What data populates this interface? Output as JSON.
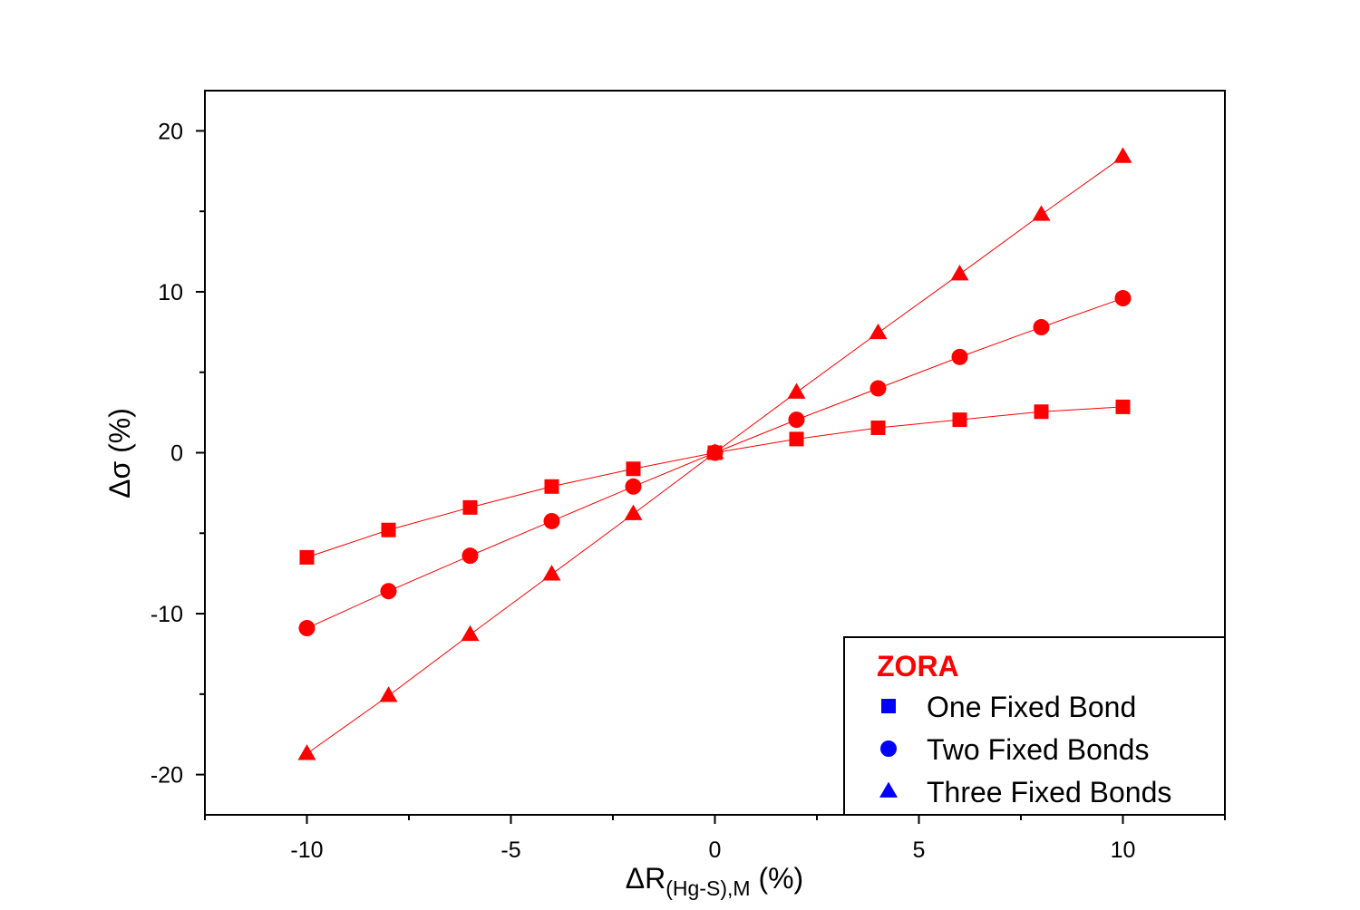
{
  "chart_data": {
    "type": "line",
    "x_axis": {
      "label_main": "ΔR",
      "label_sub": "(Hg-S),M",
      "label_unit": " (%)",
      "range": [
        -12.5,
        12.5
      ],
      "ticks": [
        -10,
        -5,
        0,
        5,
        10
      ],
      "tick_labels": [
        "-10",
        "-5",
        "0",
        "5",
        "10"
      ]
    },
    "y_axis": {
      "label": "Δσ (%)",
      "range": [
        -22.5,
        22.5
      ],
      "ticks": [
        -20,
        -10,
        0,
        10,
        20
      ],
      "tick_labels": [
        "-20",
        "-10",
        "0",
        "10",
        "20"
      ]
    },
    "legend": {
      "title": "ZORA",
      "title_color": "#ff0000",
      "marker_color": "#0000ff",
      "placement": "bottom-right",
      "entries": [
        {
          "label": "One Fixed Bond",
          "marker": "square"
        },
        {
          "label": "Two Fixed Bonds",
          "marker": "circle"
        },
        {
          "label": "Three Fixed Bonds",
          "marker": "triangle"
        }
      ]
    },
    "grid": false,
    "series_color": "#ff0000",
    "x": [
      -10,
      -8,
      -6,
      -4,
      -2,
      0,
      2,
      4,
      6,
      8,
      10
    ],
    "series": [
      {
        "name": "One Fixed Bond",
        "marker": "square",
        "values": [
          -6.5,
          -4.8,
          -3.4,
          -2.1,
          -1.0,
          0,
          0.85,
          1.55,
          2.05,
          2.55,
          2.85
        ]
      },
      {
        "name": "Two Fixed Bonds",
        "marker": "circle",
        "values": [
          -10.9,
          -8.6,
          -6.4,
          -4.25,
          -2.1,
          0,
          2.05,
          4.0,
          5.95,
          7.8,
          9.6
        ]
      },
      {
        "name": "Three Fixed Bonds",
        "marker": "triangle",
        "values": [
          -18.7,
          -15.1,
          -11.3,
          -7.55,
          -3.8,
          0,
          3.75,
          7.45,
          11.1,
          14.8,
          18.4
        ]
      }
    ]
  }
}
